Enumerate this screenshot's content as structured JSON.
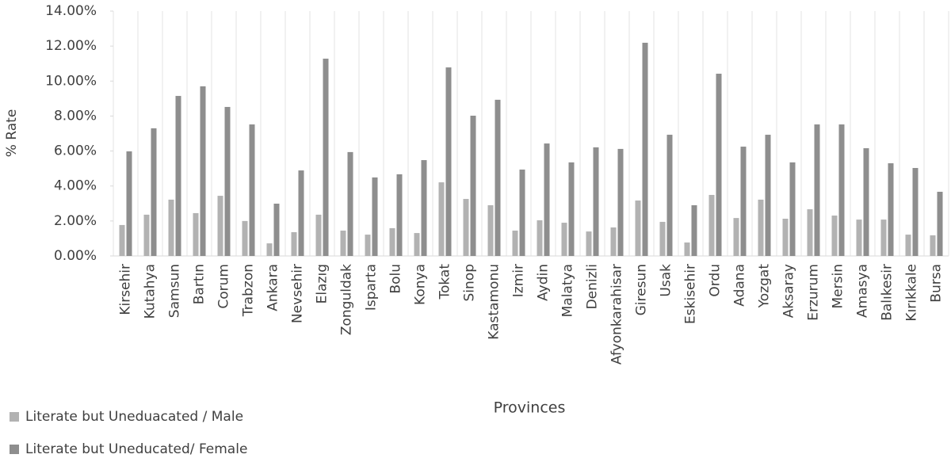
{
  "chart_data": {
    "type": "bar",
    "y_label": "% Rate",
    "x_label": "Provinces",
    "categories": [
      "Kirsehir",
      "Kutahya",
      "Samsun",
      "Bartın",
      "Corum",
      "Trabzon",
      "Ankara",
      "Nevsehir",
      "Elazıg",
      "Zonguldak",
      "Isparta",
      "Bolu",
      "Konya",
      "Tokat",
      "Sinop",
      "Kastamonu",
      "Izmir",
      "Aydin",
      "Malatya",
      "Denizli",
      "Afyonkarahisar",
      "Giresun",
      "Usak",
      "Eskisehir",
      "Ordu",
      "Adana",
      "Yozgat",
      "Aksaray",
      "Erzurum",
      "Mersin",
      "Amasya",
      "Balıkesir",
      "Kırıkkale",
      "Bursa"
    ],
    "series": [
      {
        "name": "Literate but Uneduacated / Male",
        "color": "#b2b2b2",
        "values": [
          1.77,
          2.36,
          3.22,
          2.45,
          3.44,
          2.0,
          0.72,
          1.36,
          2.36,
          1.45,
          1.22,
          1.59,
          1.31,
          4.21,
          3.26,
          2.9,
          1.45,
          2.04,
          1.9,
          1.4,
          1.63,
          3.17,
          1.95,
          0.77,
          3.49,
          2.17,
          3.22,
          2.13,
          2.67,
          2.31,
          2.08,
          2.08,
          1.22,
          1.18
        ]
      },
      {
        "name": "Literate but Uneducated/ Female",
        "color": "#8e8e8e",
        "values": [
          5.98,
          7.3,
          9.15,
          9.7,
          8.52,
          7.52,
          2.99,
          4.89,
          11.28,
          5.94,
          4.49,
          4.67,
          5.48,
          10.78,
          8.02,
          8.93,
          4.94,
          6.43,
          5.35,
          6.21,
          6.12,
          12.19,
          6.93,
          2.9,
          10.42,
          6.25,
          6.93,
          5.35,
          7.52,
          7.52,
          6.16,
          5.3,
          5.03,
          3.67
        ]
      }
    ],
    "ylim": [
      0,
      14
    ],
    "yticks": [
      {
        "value": 0,
        "label": "0.00%"
      },
      {
        "value": 2,
        "label": "2.00%"
      },
      {
        "value": 4,
        "label": "4.00%"
      },
      {
        "value": 6,
        "label": "6.00%"
      },
      {
        "value": 8,
        "label": "8.00%"
      },
      {
        "value": 10,
        "label": "10.00%"
      },
      {
        "value": 12,
        "label": "12.00%"
      },
      {
        "value": 14,
        "label": "14.00%"
      }
    ],
    "legend": "bottom-left"
  }
}
